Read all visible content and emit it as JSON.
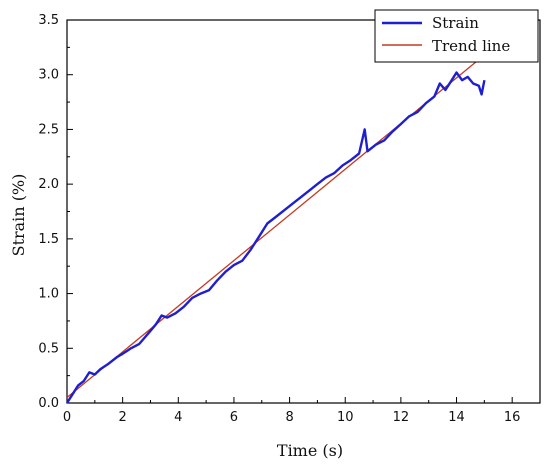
{
  "chart_data": {
    "type": "line",
    "xlabel": "Time (s)",
    "ylabel": "Strain (%)",
    "xlim": [
      0,
      17
    ],
    "ylim": [
      0,
      3.5
    ],
    "xticks": [
      "0",
      "2",
      "4",
      "6",
      "8",
      "10",
      "12",
      "14",
      "16"
    ],
    "yticks": [
      "0.0",
      "0.5",
      "1.0",
      "1.5",
      "2.0",
      "2.5",
      "3.0",
      "3.5"
    ],
    "legend": {
      "position": "top-right"
    },
    "series": [
      {
        "name": "Strain",
        "color": "#1f1fd0",
        "points": [
          [
            0.0,
            0.0
          ],
          [
            0.2,
            0.08
          ],
          [
            0.4,
            0.16
          ],
          [
            0.6,
            0.2
          ],
          [
            0.8,
            0.28
          ],
          [
            1.0,
            0.26
          ],
          [
            1.2,
            0.31
          ],
          [
            1.5,
            0.36
          ],
          [
            1.8,
            0.42
          ],
          [
            2.0,
            0.45
          ],
          [
            2.3,
            0.5
          ],
          [
            2.6,
            0.54
          ],
          [
            3.0,
            0.66
          ],
          [
            3.2,
            0.72
          ],
          [
            3.4,
            0.8
          ],
          [
            3.6,
            0.78
          ],
          [
            3.9,
            0.82
          ],
          [
            4.2,
            0.88
          ],
          [
            4.5,
            0.96
          ],
          [
            4.8,
            1.0
          ],
          [
            5.1,
            1.03
          ],
          [
            5.4,
            1.12
          ],
          [
            5.7,
            1.2
          ],
          [
            6.0,
            1.26
          ],
          [
            6.3,
            1.3
          ],
          [
            6.6,
            1.4
          ],
          [
            6.9,
            1.52
          ],
          [
            7.2,
            1.64
          ],
          [
            7.5,
            1.7
          ],
          [
            7.8,
            1.76
          ],
          [
            8.1,
            1.82
          ],
          [
            8.4,
            1.88
          ],
          [
            8.7,
            1.94
          ],
          [
            9.0,
            2.0
          ],
          [
            9.3,
            2.06
          ],
          [
            9.6,
            2.1
          ],
          [
            9.9,
            2.17
          ],
          [
            10.2,
            2.22
          ],
          [
            10.5,
            2.28
          ],
          [
            10.7,
            2.5
          ],
          [
            10.8,
            2.3
          ],
          [
            11.1,
            2.36
          ],
          [
            11.4,
            2.4
          ],
          [
            11.7,
            2.48
          ],
          [
            12.0,
            2.55
          ],
          [
            12.3,
            2.62
          ],
          [
            12.6,
            2.66
          ],
          [
            12.9,
            2.74
          ],
          [
            13.2,
            2.8
          ],
          [
            13.4,
            2.92
          ],
          [
            13.6,
            2.86
          ],
          [
            13.8,
            2.94
          ],
          [
            14.0,
            3.02
          ],
          [
            14.2,
            2.95
          ],
          [
            14.4,
            2.98
          ],
          [
            14.6,
            2.92
          ],
          [
            14.8,
            2.9
          ],
          [
            14.9,
            2.82
          ],
          [
            15.0,
            2.95
          ]
        ]
      },
      {
        "name": "Trend line",
        "color": "#c23b22",
        "points": [
          [
            0.0,
            0.05
          ],
          [
            15.0,
            3.18
          ]
        ]
      }
    ]
  }
}
